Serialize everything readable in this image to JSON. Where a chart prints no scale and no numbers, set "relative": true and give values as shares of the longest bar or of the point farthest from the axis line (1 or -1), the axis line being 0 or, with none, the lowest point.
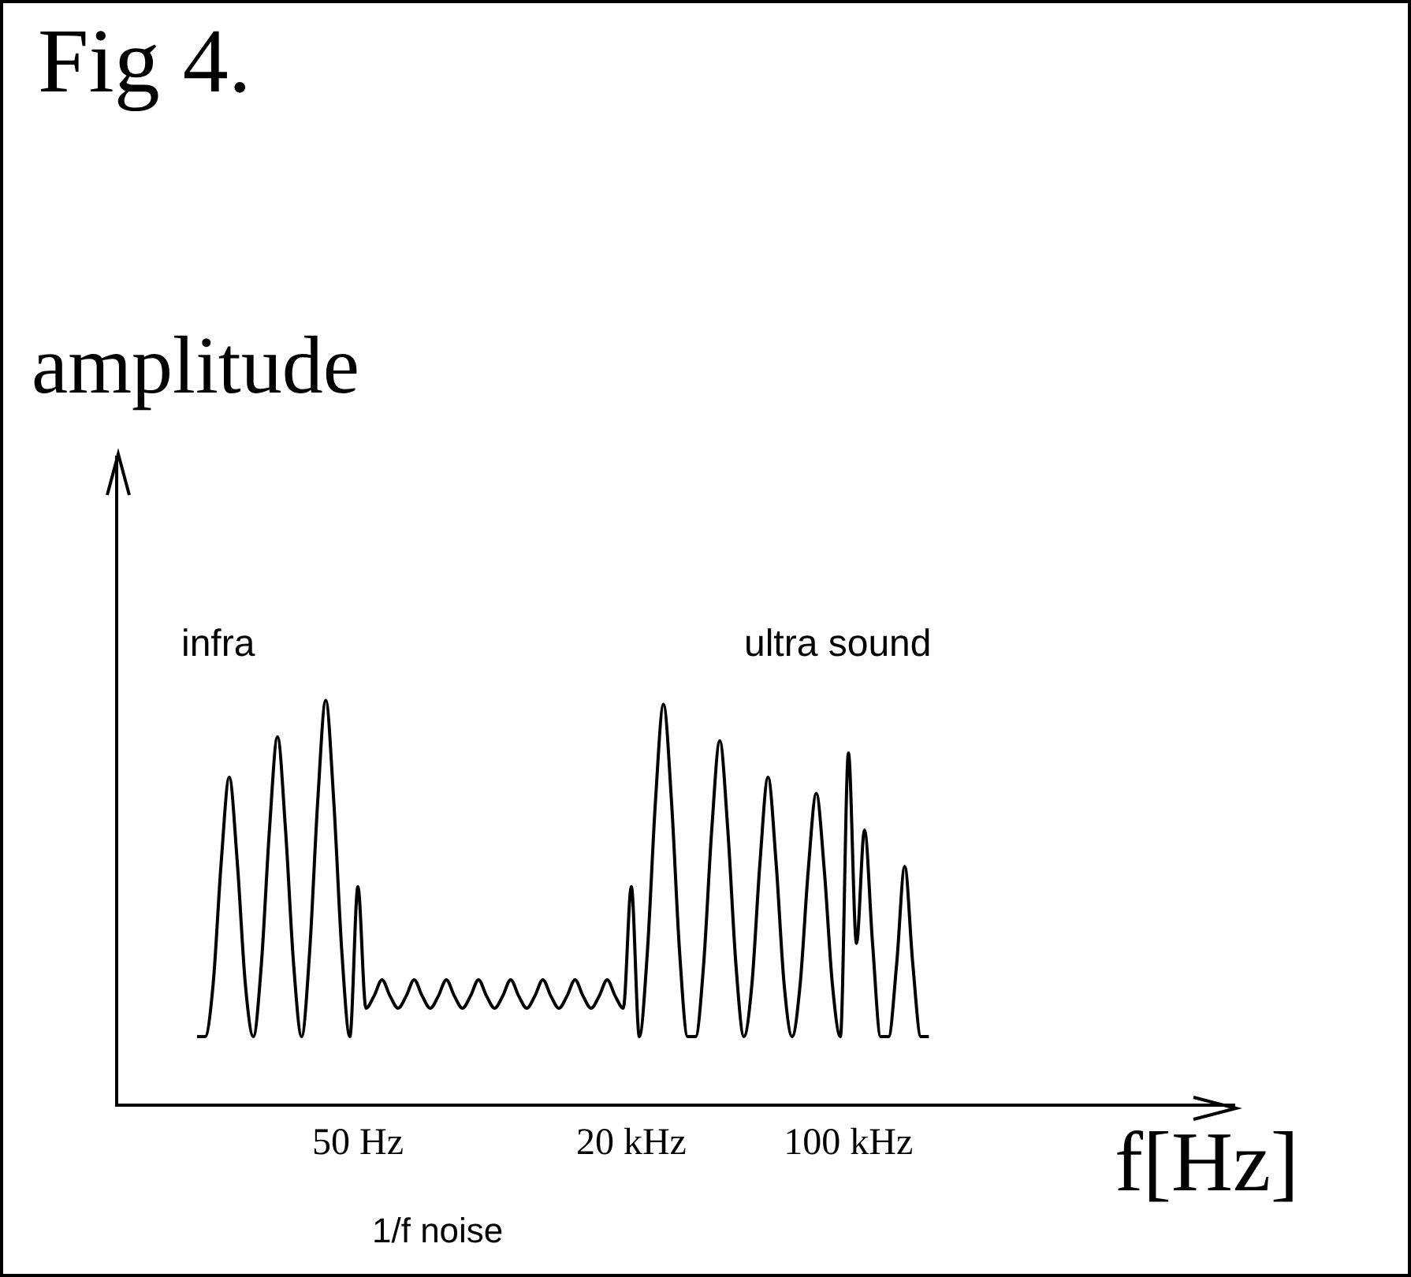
{
  "chart_data": {
    "type": "line",
    "title": "Fig 4.",
    "ylabel": "amplitude",
    "xlabel": "f[Hz]",
    "annotations": [
      "infra",
      "ultra sound",
      "1/f noise"
    ],
    "relative": true,
    "grid": false,
    "tick_labels": "x",
    "marker": "none",
    "line_style": "solid",
    "color": "#000000",
    "categories": [
      null,
      null,
      null,
      null,
      null,
      null,
      null,
      null,
      null,
      null,
      null,
      null,
      null,
      null,
      null,
      null,
      null,
      null,
      null,
      null,
      null,
      null,
      null,
      null,
      null,
      null,
      null,
      null,
      null,
      null,
      "50 Hz",
      null,
      null,
      null,
      null,
      null,
      null,
      null,
      null,
      null,
      null,
      null,
      null,
      null,
      null,
      null,
      null,
      null,
      null,
      null,
      null,
      null,
      null,
      null,
      null,
      null,
      null,
      null,
      null,
      null,
      null,
      null,
      null,
      null,
      "20 kHz",
      null,
      null,
      null,
      null,
      null,
      null,
      null,
      null,
      null,
      null,
      null,
      null,
      null,
      null,
      null,
      null,
      null,
      null,
      null,
      null,
      null,
      null,
      null,
      null,
      null,
      null,
      "100 kHz",
      null,
      null,
      null,
      null,
      null,
      null,
      null,
      null,
      null,
      null,
      null,
      null,
      null,
      null,
      null,
      null,
      null,
      null,
      null,
      null,
      null,
      null,
      null,
      null,
      null,
      null,
      null,
      null,
      null,
      null,
      null,
      null,
      null,
      null,
      null,
      null,
      null,
      null,
      null,
      null,
      null,
      null,
      null,
      null,
      null,
      null,
      null,
      null
    ],
    "values": [
      null,
      null,
      null,
      null,
      null,
      null,
      null,
      null,
      null,
      null,
      0.17,
      0.17,
      0.3,
      0.6,
      0.81,
      0.6,
      0.3,
      0.17,
      0.35,
      0.68,
      0.91,
      0.68,
      0.35,
      0.17,
      0.38,
      0.75,
      1.0,
      0.75,
      0.38,
      0.17,
      0.54,
      0.24,
      0.27,
      0.31,
      0.27,
      0.24,
      0.27,
      0.31,
      0.27,
      0.24,
      0.27,
      0.31,
      0.27,
      0.24,
      0.27,
      0.31,
      0.27,
      0.24,
      0.27,
      0.31,
      0.27,
      0.24,
      0.27,
      0.31,
      0.27,
      0.24,
      0.27,
      0.31,
      0.27,
      0.24,
      0.27,
      0.31,
      0.27,
      0.24,
      0.54,
      0.17,
      0.38,
      0.75,
      0.99,
      0.75,
      0.38,
      0.17,
      0.17,
      0.35,
      0.68,
      0.9,
      0.68,
      0.35,
      0.17,
      0.3,
      0.6,
      0.81,
      0.6,
      0.3,
      0.17,
      0.3,
      0.58,
      0.77,
      0.58,
      0.3,
      0.17,
      0.87,
      0.4,
      0.68,
      0.4,
      0.17,
      0.17,
      0.35,
      0.59,
      0.35,
      0.17,
      0.17,
      null,
      null,
      null,
      null,
      null,
      null,
      null,
      null,
      null,
      null,
      null,
      null,
      null,
      null,
      null,
      null,
      null,
      null,
      null,
      null,
      null,
      null,
      null,
      null,
      null,
      null,
      null,
      null,
      null,
      null,
      null,
      null,
      null,
      null,
      null,
      null,
      null,
      null
    ]
  }
}
